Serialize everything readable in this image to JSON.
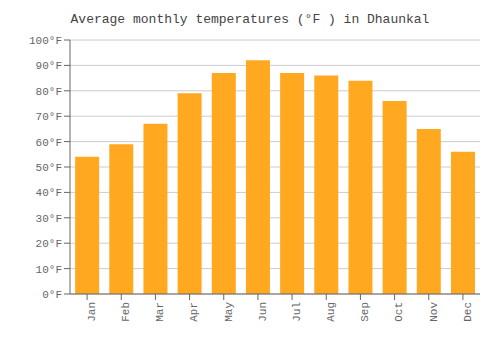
{
  "chart_data": {
    "type": "bar",
    "title": "Average monthly temperatures (°F ) in Dhaunkal",
    "categories": [
      "Jan",
      "Feb",
      "Mar",
      "Apr",
      "May",
      "Jun",
      "Jul",
      "Aug",
      "Sep",
      "Oct",
      "Nov",
      "Dec"
    ],
    "values": [
      54,
      59,
      67,
      79,
      87,
      92,
      87,
      86,
      84,
      76,
      65,
      56
    ],
    "color": "#FFA820",
    "ylim": [
      0,
      100
    ],
    "yticks": [
      {
        "value": 0,
        "label": "0°F"
      },
      {
        "value": 10,
        "label": "10°F"
      },
      {
        "value": 20,
        "label": "20°F"
      },
      {
        "value": 30,
        "label": "30°F"
      },
      {
        "value": 40,
        "label": "40°F"
      },
      {
        "value": 50,
        "label": "50°F"
      },
      {
        "value": 60,
        "label": "60°F"
      },
      {
        "value": 70,
        "label": "70°F"
      },
      {
        "value": 80,
        "label": "80°F"
      },
      {
        "value": 90,
        "label": "90°F"
      },
      {
        "value": 100,
        "label": "100°F"
      }
    ],
    "grid": true
  }
}
